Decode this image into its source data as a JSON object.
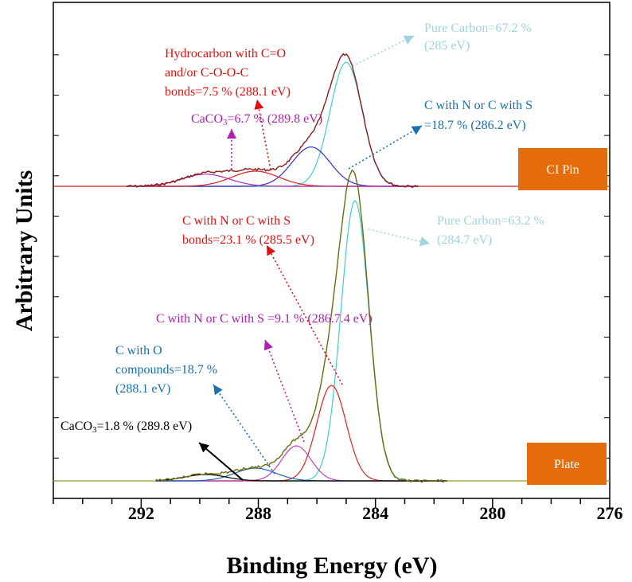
{
  "chart_data": {
    "type": "line",
    "xlabel": "Binding Energy (eV)",
    "ylabel": "Arbitrary Units",
    "xlim": [
      295,
      276
    ],
    "x_ticks": [
      {
        "value": 292,
        "label": "292"
      },
      {
        "value": 288,
        "label": "288"
      },
      {
        "value": 284,
        "label": "284"
      },
      {
        "value": 280,
        "label": "280"
      },
      {
        "value": 276,
        "label": "276"
      }
    ],
    "y_scale": "arbitrary",
    "grid": false,
    "colors": {
      "envelope": "#8b1a1a",
      "envelope_bottom": "#6b6b10",
      "pure_carbon": "#3ccfcf",
      "cn_cs_top": "#3030cc",
      "cn_cs_bottom": "#dd2020",
      "c_o": "#dd2020",
      "caco3": "#b030b0",
      "caco3_bottom": "#2060c0",
      "cn_cs_2": "#c040c0",
      "baseline_top": "#cc2020",
      "baseline_bottom": "#9a9a30",
      "box": "#e46c0a"
    },
    "panels": [
      {
        "name": "CI Pin",
        "peaks": [
          {
            "label": "Pure Carbon",
            "percent": 67.2,
            "center_eV": 285,
            "height": 0.82,
            "width": 0.55,
            "color": "#3ccfcf"
          },
          {
            "label": "C with N or C with S",
            "percent": 18.7,
            "center_eV": 286.2,
            "height": 0.26,
            "width": 0.65,
            "color": "#3030cc"
          },
          {
            "label": "Hydrocarbon with C=O and/or C-O-O-C",
            "percent": 7.5,
            "center_eV": 288.1,
            "height": 0.1,
            "width": 0.8,
            "color": "#dd2020"
          },
          {
            "label": "CaCO3",
            "percent": 6.7,
            "center_eV": 289.8,
            "height": 0.08,
            "width": 0.8,
            "color": "#b030b0"
          }
        ],
        "envelope_color": "#8b1a1a"
      },
      {
        "name": "Plate",
        "peaks": [
          {
            "label": "Pure Carbon",
            "percent": 63.2,
            "center_eV": 284.7,
            "height": 0.88,
            "width": 0.48,
            "color": "#3ccfcf"
          },
          {
            "label": "C with N or C with S bonds",
            "percent": 23.1,
            "center_eV": 285.5,
            "height": 0.3,
            "width": 0.5,
            "color": "#dd2020"
          },
          {
            "label": "C with N or C with S",
            "percent": 9.1,
            "center_eV": 286.7,
            "height": 0.11,
            "width": 0.5,
            "color": "#c040c0"
          },
          {
            "label": "C with O compounds",
            "percent": 18.7,
            "center_eV": 288.1,
            "height": 0.04,
            "width": 0.7,
            "color": "#2060c0"
          },
          {
            "label": "CaCO3",
            "percent": 1.8,
            "center_eV": 289.8,
            "height": 0.02,
            "width": 0.7,
            "color": "#000000"
          }
        ],
        "envelope_color": "#6b6b10"
      }
    ],
    "annotations": {
      "top": {
        "pure_carbon_1": "Pure Carbon=67.2 %",
        "pure_carbon_2": "(285 eV)",
        "hydrocarbon_1": "Hydrocarbon with C=O",
        "hydrocarbon_2": "and/or C-O-O-C",
        "hydrocarbon_3": "bonds=7.5 % (288.1 eV)",
        "caco3_prefix": "CaCO",
        "caco3_sub": "3",
        "caco3_suffix": "=6.7 % (289.8 eV)",
        "cn_1": "C with N or C with S",
        "cn_2": "=18.7 % (286.2 eV)",
        "box": "CI Pin"
      },
      "bottom": {
        "cn_1": "C with N or C with S",
        "cn_2": "bonds=23.1 % (285.5 eV)",
        "pure_carbon_1": "Pure Carbon=63.2 %",
        "pure_carbon_2": "(284.7 eV)",
        "cn2_line": "C with N or C with S =9.1 % (286.7.4 eV)",
        "co_1": "C with O",
        "co_2": "compounds=18.7 %",
        "co_3": "(288.1 eV)",
        "caco3_prefix": "CaCO",
        "caco3_sub": "3",
        "caco3_suffix": "=1.8 % (289.8 eV)",
        "box": "Plate"
      }
    }
  }
}
